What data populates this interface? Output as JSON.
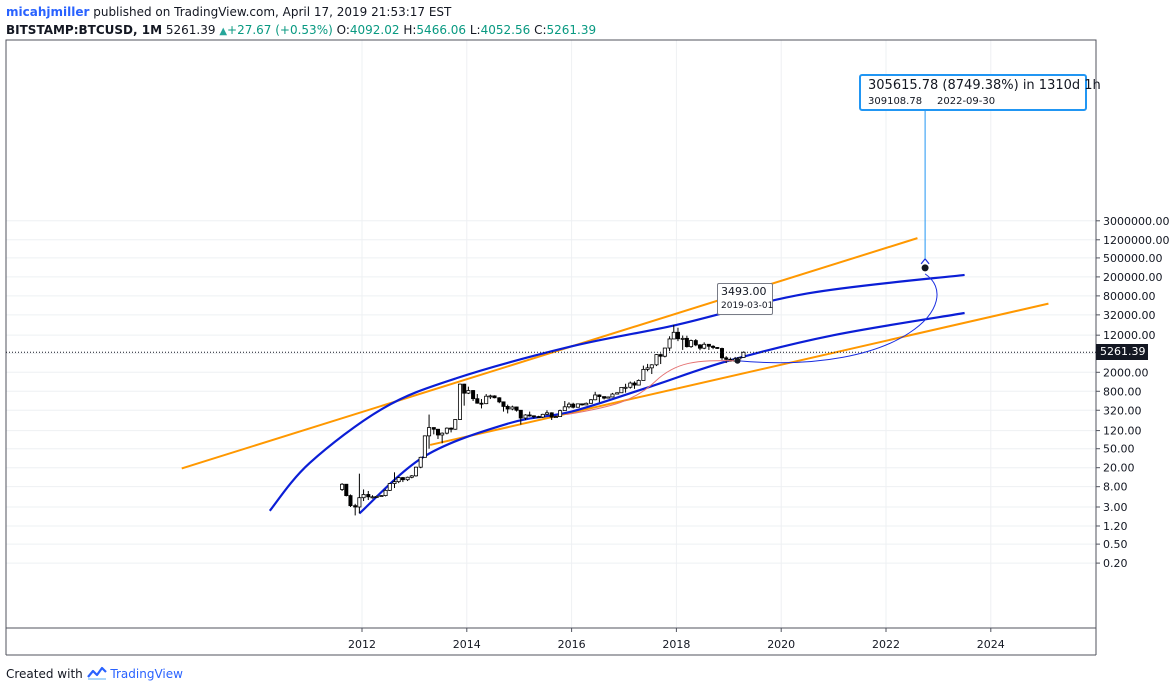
{
  "header": {
    "author": "micahjmiller",
    "published_text": "published on TradingView.com, April 17, 2019 21:53:17 EST",
    "symbol": "BITSTAMP:BTCUSD, 1M",
    "last_price": "5261.39",
    "change": "+27.67 (+0.53%)",
    "open_label": "O:",
    "open_value": "4092.02",
    "high_label": "H:",
    "high_value": "5466.06",
    "low_label": "L:",
    "low_value": "4052.56",
    "close_label": "C:",
    "close_value": "5261.39"
  },
  "footer": {
    "created_with": "Created with",
    "brand": "TradingView"
  },
  "callout": {
    "line1": "305615.78 (8749.38%) in 1310d 1h",
    "line2_price": "309108.78",
    "line2_date": "2022-09-30"
  },
  "low_label": {
    "price": "3493.00",
    "date": "2019-03-01"
  },
  "price_tag": "5261.39",
  "colors": {
    "candle_up": "#ffffff",
    "candle_down": "#000000",
    "orange": "#ff9800",
    "blue": "#0b1ed6",
    "callout_border": "#2196f3"
  },
  "chart_data": {
    "type": "candlestick",
    "title": "",
    "xlabel": "",
    "ylabel": "",
    "y_scale": "log",
    "x_ticks": [
      "2012",
      "2014",
      "2016",
      "2018",
      "2020",
      "2022",
      "2024"
    ],
    "y_ticks": [
      "3000000.00",
      "1200000.00",
      "500000.00",
      "200000.00",
      "80000.00",
      "32000.00",
      "12000.00",
      "5000.00",
      "2000.00",
      "800.00",
      "320.00",
      "120.00",
      "50.00",
      "20.00",
      "8.00",
      "3.00",
      "1.20",
      "0.50",
      "0.20"
    ],
    "current_price": 5261.39,
    "candles": [
      {
        "t": 2011.62,
        "o": 7.0,
        "h": 9.5,
        "l": 6.5,
        "c": 9.0
      },
      {
        "t": 2011.7,
        "o": 9.0,
        "h": 9.0,
        "l": 5.0,
        "c": 5.2
      },
      {
        "t": 2011.78,
        "o": 5.2,
        "h": 5.5,
        "l": 3.0,
        "c": 3.2
      },
      {
        "t": 2011.87,
        "o": 3.2,
        "h": 3.5,
        "l": 2.0,
        "c": 3.0
      },
      {
        "t": 2011.95,
        "o": 3.0,
        "h": 15.0,
        "l": 2.2,
        "c": 4.7
      },
      {
        "t": 2012.03,
        "o": 4.7,
        "h": 7.0,
        "l": 4.0,
        "c": 5.5
      },
      {
        "t": 2012.12,
        "o": 5.5,
        "h": 6.5,
        "l": 4.2,
        "c": 4.9
      },
      {
        "t": 2012.2,
        "o": 4.9,
        "h": 5.3,
        "l": 4.5,
        "c": 4.9
      },
      {
        "t": 2012.28,
        "o": 4.9,
        "h": 5.2,
        "l": 4.7,
        "c": 5.0
      },
      {
        "t": 2012.37,
        "o": 5.0,
        "h": 5.3,
        "l": 4.9,
        "c": 5.2
      },
      {
        "t": 2012.45,
        "o": 5.2,
        "h": 7.0,
        "l": 5.0,
        "c": 6.7
      },
      {
        "t": 2012.53,
        "o": 6.7,
        "h": 9.5,
        "l": 6.5,
        "c": 9.3
      },
      {
        "t": 2012.62,
        "o": 9.3,
        "h": 16.0,
        "l": 7.5,
        "c": 10.2
      },
      {
        "t": 2012.7,
        "o": 10.2,
        "h": 13.0,
        "l": 9.5,
        "c": 12.4
      },
      {
        "t": 2012.78,
        "o": 12.4,
        "h": 12.8,
        "l": 10.0,
        "c": 11.2
      },
      {
        "t": 2012.87,
        "o": 11.2,
        "h": 13.0,
        "l": 10.5,
        "c": 12.6
      },
      {
        "t": 2012.95,
        "o": 12.6,
        "h": 14.0,
        "l": 12.0,
        "c": 13.5
      },
      {
        "t": 2013.03,
        "o": 13.5,
        "h": 21.0,
        "l": 13.0,
        "c": 20.5
      },
      {
        "t": 2013.12,
        "o": 20.5,
        "h": 34.0,
        "l": 19.5,
        "c": 33.0
      },
      {
        "t": 2013.2,
        "o": 33.0,
        "h": 95.0,
        "l": 33.0,
        "c": 93.0
      },
      {
        "t": 2013.28,
        "o": 93.0,
        "h": 260.0,
        "l": 50.0,
        "c": 139.0
      },
      {
        "t": 2013.37,
        "o": 139.0,
        "h": 140.0,
        "l": 100.0,
        "c": 128.0
      },
      {
        "t": 2013.45,
        "o": 128.0,
        "h": 130.0,
        "l": 80.0,
        "c": 97.0
      },
      {
        "t": 2013.53,
        "o": 97.0,
        "h": 110.0,
        "l": 65.0,
        "c": 106.0
      },
      {
        "t": 2013.62,
        "o": 106.0,
        "h": 140.0,
        "l": 100.0,
        "c": 135.0
      },
      {
        "t": 2013.7,
        "o": 135.0,
        "h": 140.0,
        "l": 110.0,
        "c": 128.0
      },
      {
        "t": 2013.78,
        "o": 128.0,
        "h": 210.0,
        "l": 125.0,
        "c": 205.0
      },
      {
        "t": 2013.87,
        "o": 205.0,
        "h": 1160.0,
        "l": 200.0,
        "c": 1130.0
      },
      {
        "t": 2013.95,
        "o": 1130.0,
        "h": 1150.0,
        "l": 400.0,
        "c": 730.0
      },
      {
        "t": 2014.03,
        "o": 730.0,
        "h": 1000.0,
        "l": 700.0,
        "c": 830.0
      },
      {
        "t": 2014.12,
        "o": 830.0,
        "h": 850.0,
        "l": 500.0,
        "c": 560.0
      },
      {
        "t": 2014.2,
        "o": 560.0,
        "h": 700.0,
        "l": 440.0,
        "c": 450.0
      },
      {
        "t": 2014.28,
        "o": 450.0,
        "h": 550.0,
        "l": 350.0,
        "c": 440.0
      },
      {
        "t": 2014.37,
        "o": 440.0,
        "h": 700.0,
        "l": 430.0,
        "c": 630.0
      },
      {
        "t": 2014.45,
        "o": 630.0,
        "h": 680.0,
        "l": 550.0,
        "c": 640.0
      },
      {
        "t": 2014.53,
        "o": 640.0,
        "h": 660.0,
        "l": 570.0,
        "c": 585.0
      },
      {
        "t": 2014.62,
        "o": 585.0,
        "h": 600.0,
        "l": 450.0,
        "c": 480.0
      },
      {
        "t": 2014.7,
        "o": 480.0,
        "h": 490.0,
        "l": 300.0,
        "c": 385.0
      },
      {
        "t": 2014.78,
        "o": 385.0,
        "h": 420.0,
        "l": 275.0,
        "c": 340.0
      },
      {
        "t": 2014.87,
        "o": 340.0,
        "h": 400.0,
        "l": 320.0,
        "c": 375.0
      },
      {
        "t": 2014.95,
        "o": 375.0,
        "h": 380.0,
        "l": 300.0,
        "c": 320.0
      },
      {
        "t": 2015.03,
        "o": 320.0,
        "h": 320.0,
        "l": 160.0,
        "c": 220.0
      },
      {
        "t": 2015.12,
        "o": 220.0,
        "h": 265.0,
        "l": 200.0,
        "c": 255.0
      },
      {
        "t": 2015.2,
        "o": 255.0,
        "h": 300.0,
        "l": 235.0,
        "c": 245.0
      },
      {
        "t": 2015.28,
        "o": 245.0,
        "h": 250.0,
        "l": 215.0,
        "c": 235.0
      },
      {
        "t": 2015.37,
        "o": 235.0,
        "h": 245.0,
        "l": 225.0,
        "c": 230.0
      },
      {
        "t": 2015.45,
        "o": 230.0,
        "h": 270.0,
        "l": 220.0,
        "c": 263.0
      },
      {
        "t": 2015.53,
        "o": 263.0,
        "h": 320.0,
        "l": 255.0,
        "c": 283.0
      },
      {
        "t": 2015.62,
        "o": 283.0,
        "h": 290.0,
        "l": 200.0,
        "c": 230.0
      },
      {
        "t": 2015.7,
        "o": 230.0,
        "h": 245.0,
        "l": 225.0,
        "c": 236.0
      },
      {
        "t": 2015.78,
        "o": 236.0,
        "h": 330.0,
        "l": 235.0,
        "c": 314.0
      },
      {
        "t": 2015.87,
        "o": 314.0,
        "h": 500.0,
        "l": 310.0,
        "c": 378.0
      },
      {
        "t": 2015.95,
        "o": 378.0,
        "h": 470.0,
        "l": 350.0,
        "c": 430.0
      },
      {
        "t": 2016.03,
        "o": 430.0,
        "h": 460.0,
        "l": 350.0,
        "c": 370.0
      },
      {
        "t": 2016.12,
        "o": 370.0,
        "h": 440.0,
        "l": 365.0,
        "c": 436.0
      },
      {
        "t": 2016.2,
        "o": 436.0,
        "h": 440.0,
        "l": 400.0,
        "c": 415.0
      },
      {
        "t": 2016.28,
        "o": 415.0,
        "h": 465.0,
        "l": 410.0,
        "c": 448.0
      },
      {
        "t": 2016.37,
        "o": 448.0,
        "h": 550.0,
        "l": 440.0,
        "c": 531.0
      },
      {
        "t": 2016.45,
        "o": 531.0,
        "h": 780.0,
        "l": 520.0,
        "c": 670.0
      },
      {
        "t": 2016.53,
        "o": 670.0,
        "h": 690.0,
        "l": 470.0,
        "c": 620.0
      },
      {
        "t": 2016.62,
        "o": 620.0,
        "h": 620.0,
        "l": 540.0,
        "c": 575.0
      },
      {
        "t": 2016.7,
        "o": 575.0,
        "h": 620.0,
        "l": 570.0,
        "c": 608.0
      },
      {
        "t": 2016.78,
        "o": 608.0,
        "h": 740.0,
        "l": 600.0,
        "c": 700.0
      },
      {
        "t": 2016.87,
        "o": 700.0,
        "h": 760.0,
        "l": 690.0,
        "c": 745.0
      },
      {
        "t": 2016.95,
        "o": 745.0,
        "h": 970.0,
        "l": 740.0,
        "c": 965.0
      },
      {
        "t": 2017.03,
        "o": 965.0,
        "h": 1150.0,
        "l": 750.0,
        "c": 970.0
      },
      {
        "t": 2017.12,
        "o": 970.0,
        "h": 1280.0,
        "l": 910.0,
        "c": 1190.0
      },
      {
        "t": 2017.2,
        "o": 1190.0,
        "h": 1290.0,
        "l": 900.0,
        "c": 1080.0
      },
      {
        "t": 2017.28,
        "o": 1080.0,
        "h": 1420.0,
        "l": 1070.0,
        "c": 1350.0
      },
      {
        "t": 2017.37,
        "o": 1350.0,
        "h": 2760.0,
        "l": 1350.0,
        "c": 2300.0
      },
      {
        "t": 2017.45,
        "o": 2300.0,
        "h": 3000.0,
        "l": 2100.0,
        "c": 2480.0
      },
      {
        "t": 2017.53,
        "o": 2480.0,
        "h": 2950.0,
        "l": 1840.0,
        "c": 2870.0
      },
      {
        "t": 2017.62,
        "o": 2870.0,
        "h": 4800.0,
        "l": 2700.0,
        "c": 4700.0
      },
      {
        "t": 2017.7,
        "o": 4700.0,
        "h": 4980.0,
        "l": 2980.0,
        "c": 4340.0
      },
      {
        "t": 2017.78,
        "o": 4340.0,
        "h": 6470.0,
        "l": 4100.0,
        "c": 6450.0
      },
      {
        "t": 2017.87,
        "o": 6450.0,
        "h": 11400.0,
        "l": 5600.0,
        "c": 10000.0
      },
      {
        "t": 2017.95,
        "o": 10000.0,
        "h": 19700.0,
        "l": 10000.0,
        "c": 13800.0
      },
      {
        "t": 2018.03,
        "o": 13800.0,
        "h": 17200.0,
        "l": 9000.0,
        "c": 10100.0
      },
      {
        "t": 2018.12,
        "o": 10100.0,
        "h": 11800.0,
        "l": 5900.0,
        "c": 10300.0
      },
      {
        "t": 2018.2,
        "o": 10300.0,
        "h": 11700.0,
        "l": 6600.0,
        "c": 6900.0
      },
      {
        "t": 2018.28,
        "o": 6900.0,
        "h": 9700.0,
        "l": 6500.0,
        "c": 9250.0
      },
      {
        "t": 2018.37,
        "o": 9250.0,
        "h": 9950.0,
        "l": 7050.0,
        "c": 7500.0
      },
      {
        "t": 2018.45,
        "o": 7500.0,
        "h": 7800.0,
        "l": 5800.0,
        "c": 6400.0
      },
      {
        "t": 2018.53,
        "o": 6400.0,
        "h": 8500.0,
        "l": 6100.0,
        "c": 7730.0
      },
      {
        "t": 2018.62,
        "o": 7730.0,
        "h": 7760.0,
        "l": 5880.0,
        "c": 7030.0
      },
      {
        "t": 2018.7,
        "o": 7030.0,
        "h": 7400.0,
        "l": 6100.0,
        "c": 6630.0
      },
      {
        "t": 2018.78,
        "o": 6630.0,
        "h": 6750.0,
        "l": 6200.0,
        "c": 6320.0
      },
      {
        "t": 2018.87,
        "o": 6320.0,
        "h": 6560.0,
        "l": 3650.0,
        "c": 4020.0
      },
      {
        "t": 2018.95,
        "o": 4020.0,
        "h": 4350.0,
        "l": 3130.0,
        "c": 3740.0
      },
      {
        "t": 2019.03,
        "o": 3740.0,
        "h": 4070.0,
        "l": 3350.0,
        "c": 3440.0
      },
      {
        "t": 2019.12,
        "o": 3440.0,
        "h": 4200.0,
        "l": 3390.0,
        "c": 3820.0
      },
      {
        "t": 2019.2,
        "o": 3820.0,
        "h": 4100.0,
        "l": 3680.0,
        "c": 4090.0
      },
      {
        "t": 2019.28,
        "o": 4092.02,
        "h": 5466.06,
        "l": 4052.56,
        "c": 5261.39
      }
    ],
    "lines": [
      {
        "name": "",
        "color": "orange",
        "kind": "straight",
        "points": [
          [
            2008.56,
            19.3
          ],
          [
            2022.6,
            1300000.0
          ]
        ]
      },
      {
        "name": "",
        "color": "orange",
        "kind": "straight",
        "points": [
          [
            2013.3,
            60.0
          ],
          [
            2025.1,
            55000.0
          ]
        ]
      },
      {
        "name": "",
        "color": "blue",
        "kind": "curve",
        "points": [
          [
            2010.24,
            2.5
          ],
          [
            2011.0,
            25.0
          ],
          [
            2012.4,
            350.0
          ],
          [
            2013.8,
            1500.0
          ],
          [
            2016.0,
            7000.0
          ],
          [
            2018.0,
            19700.0
          ],
          [
            2020.5,
            90000.0
          ],
          [
            2023.5,
            220000.0
          ]
        ]
      },
      {
        "name": "",
        "color": "blue",
        "kind": "curve",
        "points": [
          [
            2011.95,
            2.2
          ],
          [
            2013.2,
            35.0
          ],
          [
            2014.8,
            170.0
          ],
          [
            2016.0,
            300.0
          ],
          [
            2017.5,
            1000.0
          ],
          [
            2019.0,
            3500.0
          ],
          [
            2021.0,
            12000.0
          ],
          [
            2023.5,
            35000.0
          ]
        ]
      }
    ],
    "projection": {
      "from_date": "2019-03-01",
      "from_price": 3493.0,
      "to_date": "2022-09-30",
      "to_price": 309108.78,
      "change": 305615.78,
      "change_pct": 8749.38,
      "duration": "1310d 1h"
    }
  }
}
